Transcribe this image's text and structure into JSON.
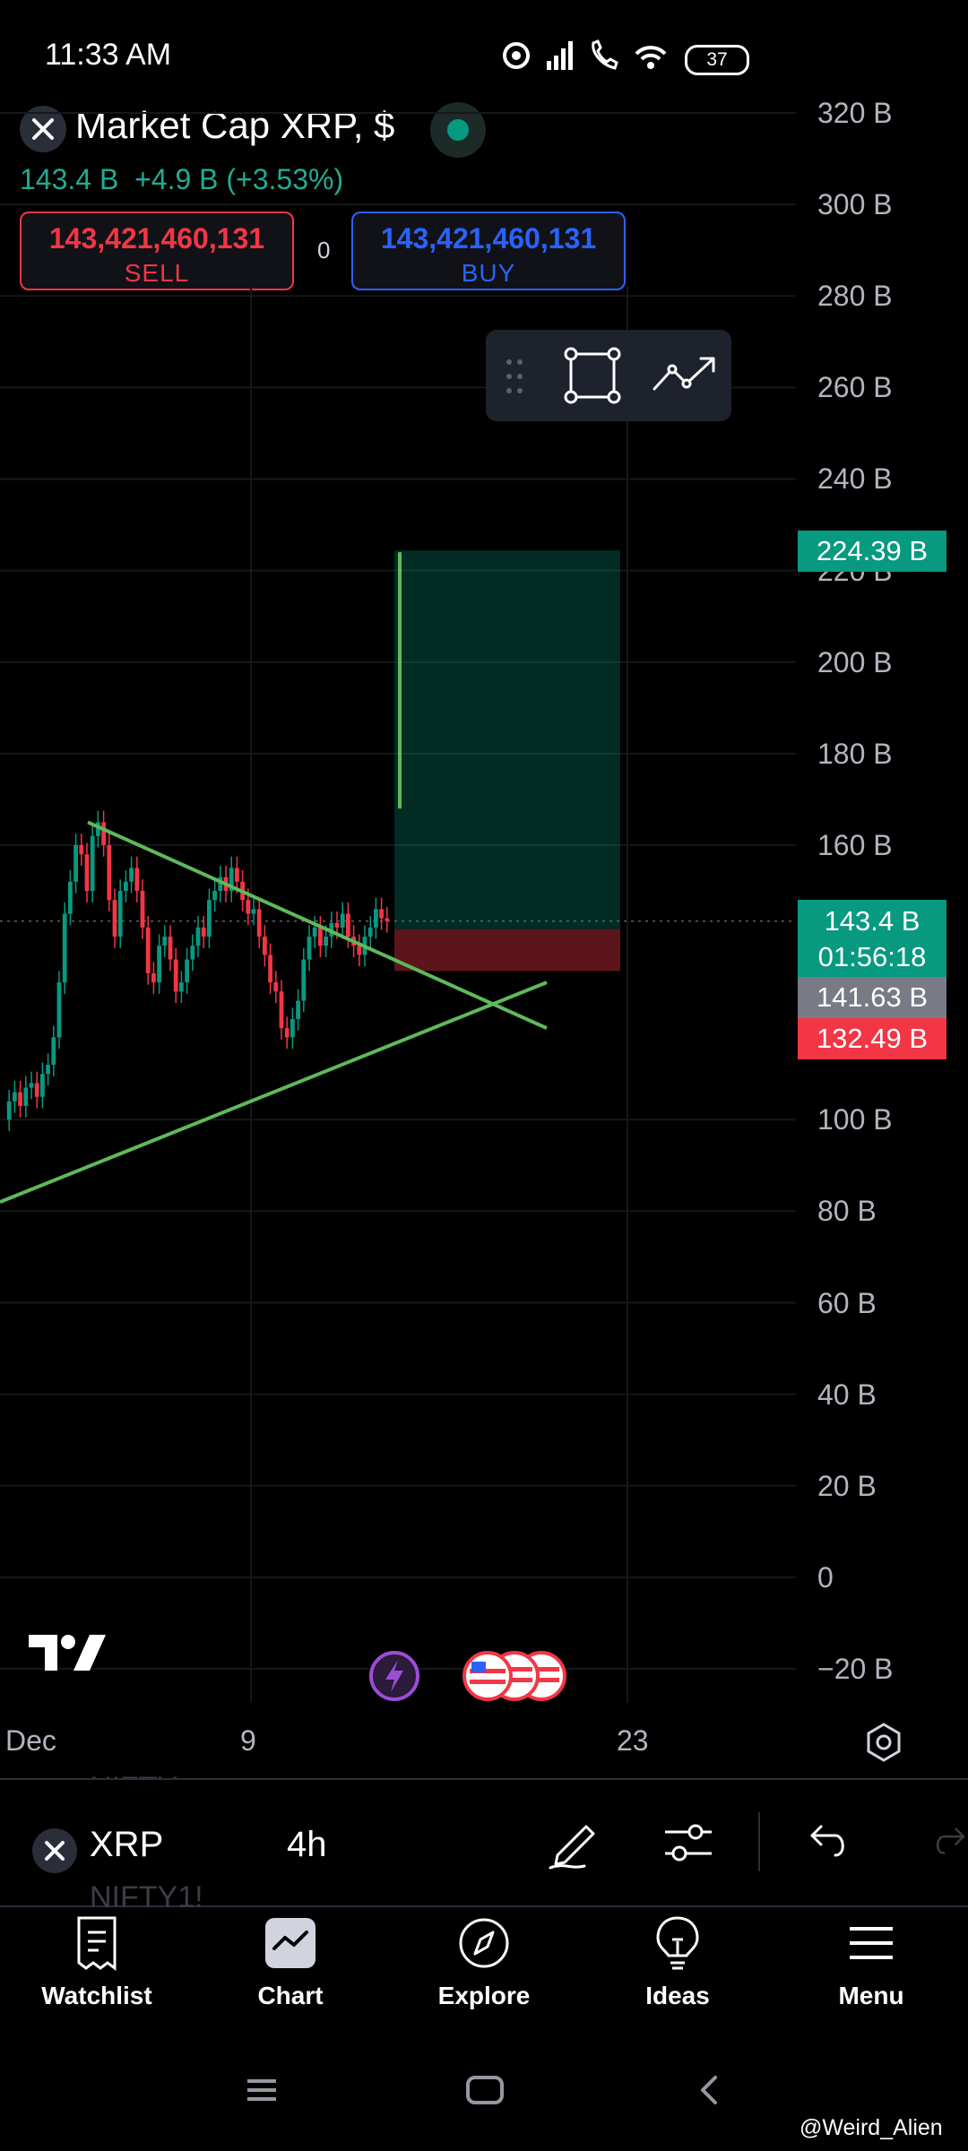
{
  "status_bar": {
    "time": "11:33 AM",
    "battery": "37"
  },
  "header": {
    "title": "Market Cap XRP, $",
    "price": "143.4 B",
    "change": "+4.9 B (+3.53%)"
  },
  "trade": {
    "sell_price": "143,421,460,131",
    "sell_label": "SELL",
    "buy_price": "143,421,460,131",
    "buy_label": "BUY",
    "spread": "0"
  },
  "colors": {
    "up": "#089981",
    "down": "#f23645",
    "trendline": "#5fb95a",
    "buy": "#2962ff"
  },
  "chart_data": {
    "type": "candlestick",
    "y_ticks": [
      "320 B",
      "300 B",
      "280 B",
      "260 B",
      "240 B",
      "220 B",
      "200 B",
      "180 B",
      "160 B",
      "100 B",
      "80 B",
      "60 B",
      "40 B",
      "20 B",
      "0",
      "−20 B"
    ],
    "y_range": [
      -20,
      320
    ],
    "x_ticks": [
      "Dec",
      "9",
      "23"
    ],
    "price_tags": {
      "target": "224.39 B",
      "last": "143.4 B",
      "countdown": "01:56:18",
      "entry": "141.63 B",
      "stop": "132.49 B"
    },
    "series": [
      {
        "values": [
          100,
          104,
          106,
          103,
          107,
          108,
          105,
          110,
          112,
          118,
          130,
          145,
          152,
          160,
          158,
          150,
          162,
          165,
          160,
          148,
          140,
          150,
          152,
          155,
          150,
          142,
          132,
          130,
          138,
          140,
          135,
          128,
          130,
          135,
          138,
          142,
          140,
          148,
          150,
          153,
          150,
          155,
          152,
          148,
          145,
          146,
          140,
          136,
          130,
          128,
          120,
          118,
          122,
          126,
          135,
          140,
          142,
          138,
          140,
          143,
          142,
          145,
          140,
          138,
          136,
          140,
          142,
          146,
          144,
          143.4
        ]
      }
    ],
    "position": {
      "entry": 141.63,
      "target": 224.39,
      "stop": 132.49
    }
  },
  "toolbar": {
    "symbol": "XRP",
    "interval": "4h",
    "ghost_top": "NIFTY",
    "ghost_bottom": "NIFTY1!"
  },
  "nav": [
    {
      "label": "Watchlist",
      "icon": "watchlist-icon"
    },
    {
      "label": "Chart",
      "icon": "chart-icon"
    },
    {
      "label": "Explore",
      "icon": "compass-icon"
    },
    {
      "label": "Ideas",
      "icon": "lightbulb-icon"
    },
    {
      "label": "Menu",
      "icon": "menu-icon"
    }
  ],
  "watermark": "@Weird_Alien"
}
